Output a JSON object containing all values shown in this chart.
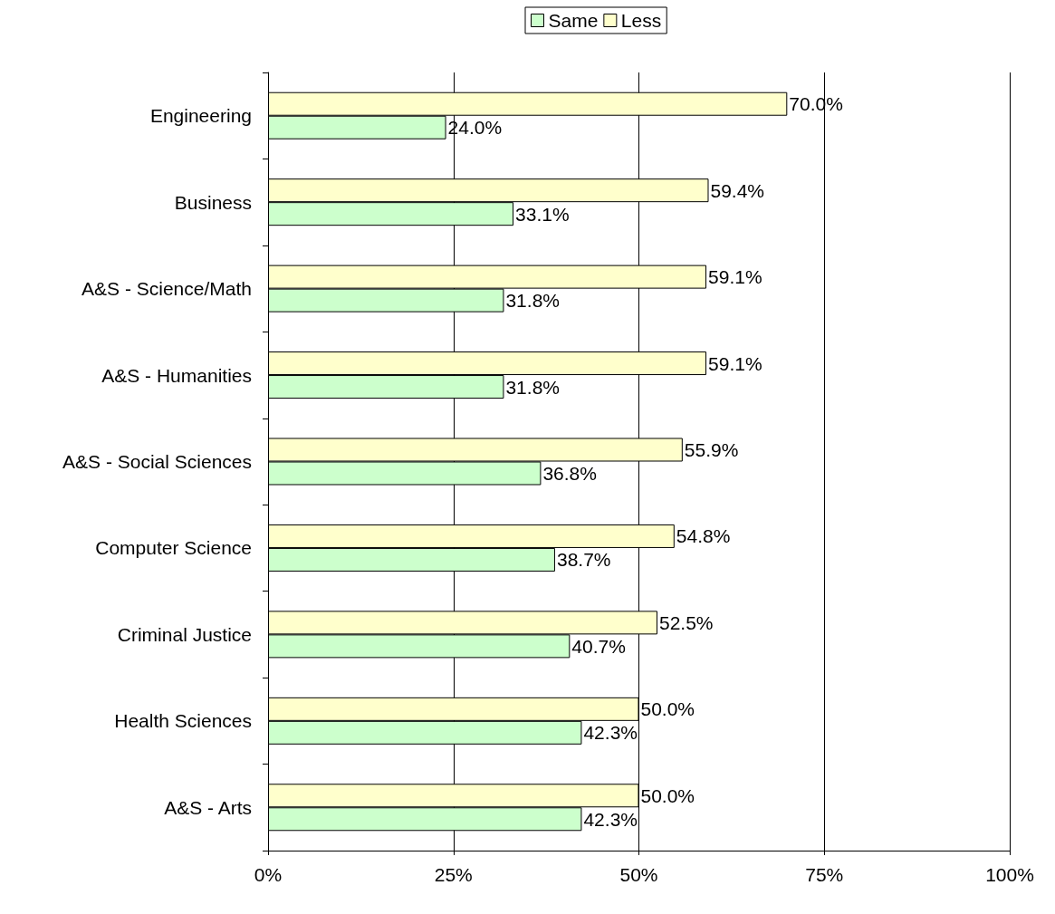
{
  "chart_data": {
    "type": "bar",
    "orientation": "horizontal",
    "categories": [
      "Engineering",
      "Business",
      "A&S - Science/Math",
      "A&S - Humanities",
      "A&S - Social Sciences",
      "Computer Science",
      "Criminal Justice",
      "Health Sciences",
      "A&S - Arts"
    ],
    "series": [
      {
        "name": "Same",
        "color": "#ccffcc",
        "values": [
          24.0,
          33.1,
          31.8,
          31.8,
          36.8,
          38.7,
          40.7,
          42.3,
          42.3
        ],
        "value_labels": [
          "24.0%",
          "33.1%",
          "31.8%",
          "31.8%",
          "36.8%",
          "38.7%",
          "40.7%",
          "42.3%",
          "42.3%"
        ]
      },
      {
        "name": "Less",
        "color": "#ffffcc",
        "values": [
          70.0,
          59.4,
          59.1,
          59.1,
          55.9,
          54.8,
          52.5,
          50.0,
          50.0
        ],
        "value_labels": [
          "70.0%",
          "59.4%",
          "59.1%",
          "59.1%",
          "55.9%",
          "54.8%",
          "52.5%",
          "50.0%",
          "50.0%"
        ]
      }
    ],
    "xlim": [
      0,
      100
    ],
    "xticks": [
      {
        "value": 0,
        "label": "0%"
      },
      {
        "value": 25,
        "label": "25%"
      },
      {
        "value": 50,
        "label": "50%"
      },
      {
        "value": 75,
        "label": "75%"
      },
      {
        "value": 100,
        "label": "100%"
      }
    ],
    "grid": "x",
    "legend": "top"
  }
}
